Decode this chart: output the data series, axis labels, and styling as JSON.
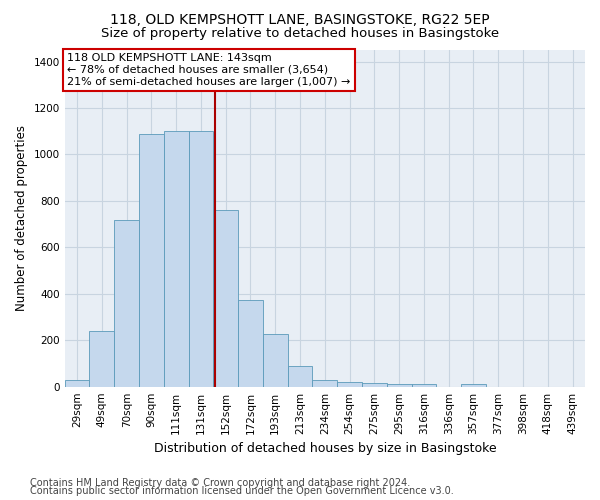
{
  "title1": "118, OLD KEMPSHOTT LANE, BASINGSTOKE, RG22 5EP",
  "title2": "Size of property relative to detached houses in Basingstoke",
  "xlabel": "Distribution of detached houses by size in Basingstoke",
  "ylabel": "Number of detached properties",
  "categories": [
    "29sqm",
    "49sqm",
    "70sqm",
    "90sqm",
    "111sqm",
    "131sqm",
    "152sqm",
    "172sqm",
    "193sqm",
    "213sqm",
    "234sqm",
    "254sqm",
    "275sqm",
    "295sqm",
    "316sqm",
    "336sqm",
    "357sqm",
    "377sqm",
    "398sqm",
    "418sqm",
    "439sqm"
  ],
  "values": [
    30,
    240,
    720,
    1090,
    1100,
    1100,
    760,
    375,
    225,
    90,
    30,
    20,
    17,
    12,
    10,
    0,
    10,
    0,
    0,
    0,
    0
  ],
  "bar_color": "#c5d8ed",
  "bar_edge_color": "#5a9aba",
  "vline_color": "#aa0000",
  "annotation_text": "118 OLD KEMPSHOTT LANE: 143sqm\n← 78% of detached houses are smaller (3,654)\n21% of semi-detached houses are larger (1,007) →",
  "annotation_box_color": "#ffffff",
  "annotation_box_edge": "#cc0000",
  "ylim": [
    0,
    1450
  ],
  "yticks": [
    0,
    200,
    400,
    600,
    800,
    1000,
    1200,
    1400
  ],
  "footnote1": "Contains HM Land Registry data © Crown copyright and database right 2024.",
  "footnote2": "Contains public sector information licensed under the Open Government Licence v3.0.",
  "background_color": "#e8eef5",
  "grid_color": "#c8d4e0",
  "title1_fontsize": 10,
  "title2_fontsize": 9.5,
  "xlabel_fontsize": 9,
  "ylabel_fontsize": 8.5,
  "tick_fontsize": 7.5,
  "annotation_fontsize": 8,
  "footnote_fontsize": 7
}
